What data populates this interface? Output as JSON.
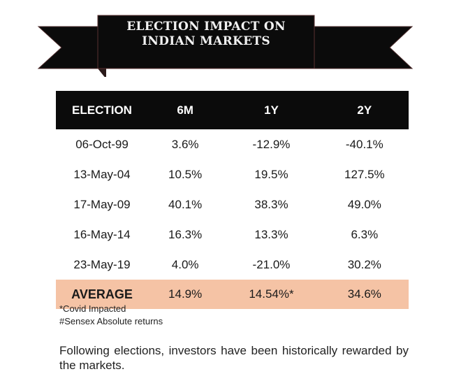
{
  "banner": {
    "title_line1": "ELECTION IMPACT ON",
    "title_line2": "INDIAN MARKETS",
    "color": "#0b0b0b"
  },
  "table": {
    "headers": [
      "ELECTION",
      "6M",
      "1Y",
      "2Y"
    ],
    "rows": [
      [
        "06-Oct-99",
        "3.6%",
        "-12.9%",
        "-40.1%"
      ],
      [
        "13-May-04",
        "10.5%",
        "19.5%",
        "127.5%"
      ],
      [
        "17-May-09",
        "40.1%",
        "38.3%",
        "49.0%"
      ],
      [
        "16-May-14",
        "16.3%",
        "13.3%",
        "6.3%"
      ],
      [
        "23-May-19",
        "4.0%",
        "-21.0%",
        "30.2%"
      ]
    ],
    "average": [
      "AVERAGE",
      "14.9%",
      "14.54%*",
      "34.6%"
    ],
    "average_color": "#f5c3a5"
  },
  "notes": [
    "*Covid Impacted",
    "#Sensex Absolute returns"
  ],
  "paragraph": "Following elections, investors have been historically rewarded by the markets."
}
